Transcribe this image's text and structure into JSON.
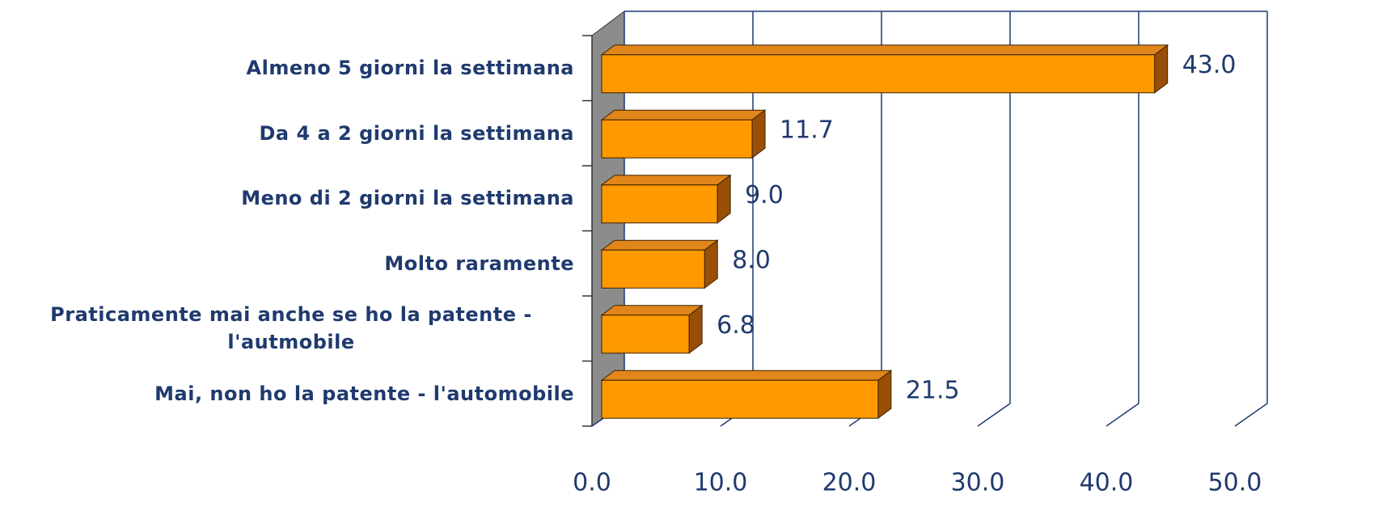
{
  "chart_data": {
    "type": "bar3d_horizontal",
    "categories": [
      "Almeno 5 giorni la settimana",
      "Da 4 a 2 giorni la settimana",
      "Meno di 2 giorni la settimana",
      "Molto raramente",
      "Praticamente mai anche se ho la patente - l'autmobile",
      "Mai, non ho la patente - l'automobile"
    ],
    "values": [
      43.0,
      11.7,
      9.0,
      8.0,
      6.8,
      21.5
    ],
    "value_labels": [
      "43.0",
      "11.7",
      "9.0",
      "8.0",
      "6.8",
      "21.5"
    ],
    "color": "#ff9900",
    "xlim": [
      0,
      50
    ],
    "xticks": [
      {
        "value": 0,
        "label": "0.0"
      },
      {
        "value": 10,
        "label": "10.0"
      },
      {
        "value": 20,
        "label": "20.0"
      },
      {
        "value": 30,
        "label": "30.0"
      },
      {
        "value": 40,
        "label": "40.0"
      },
      {
        "value": 50,
        "label": "50.0"
      }
    ],
    "grid": true
  }
}
